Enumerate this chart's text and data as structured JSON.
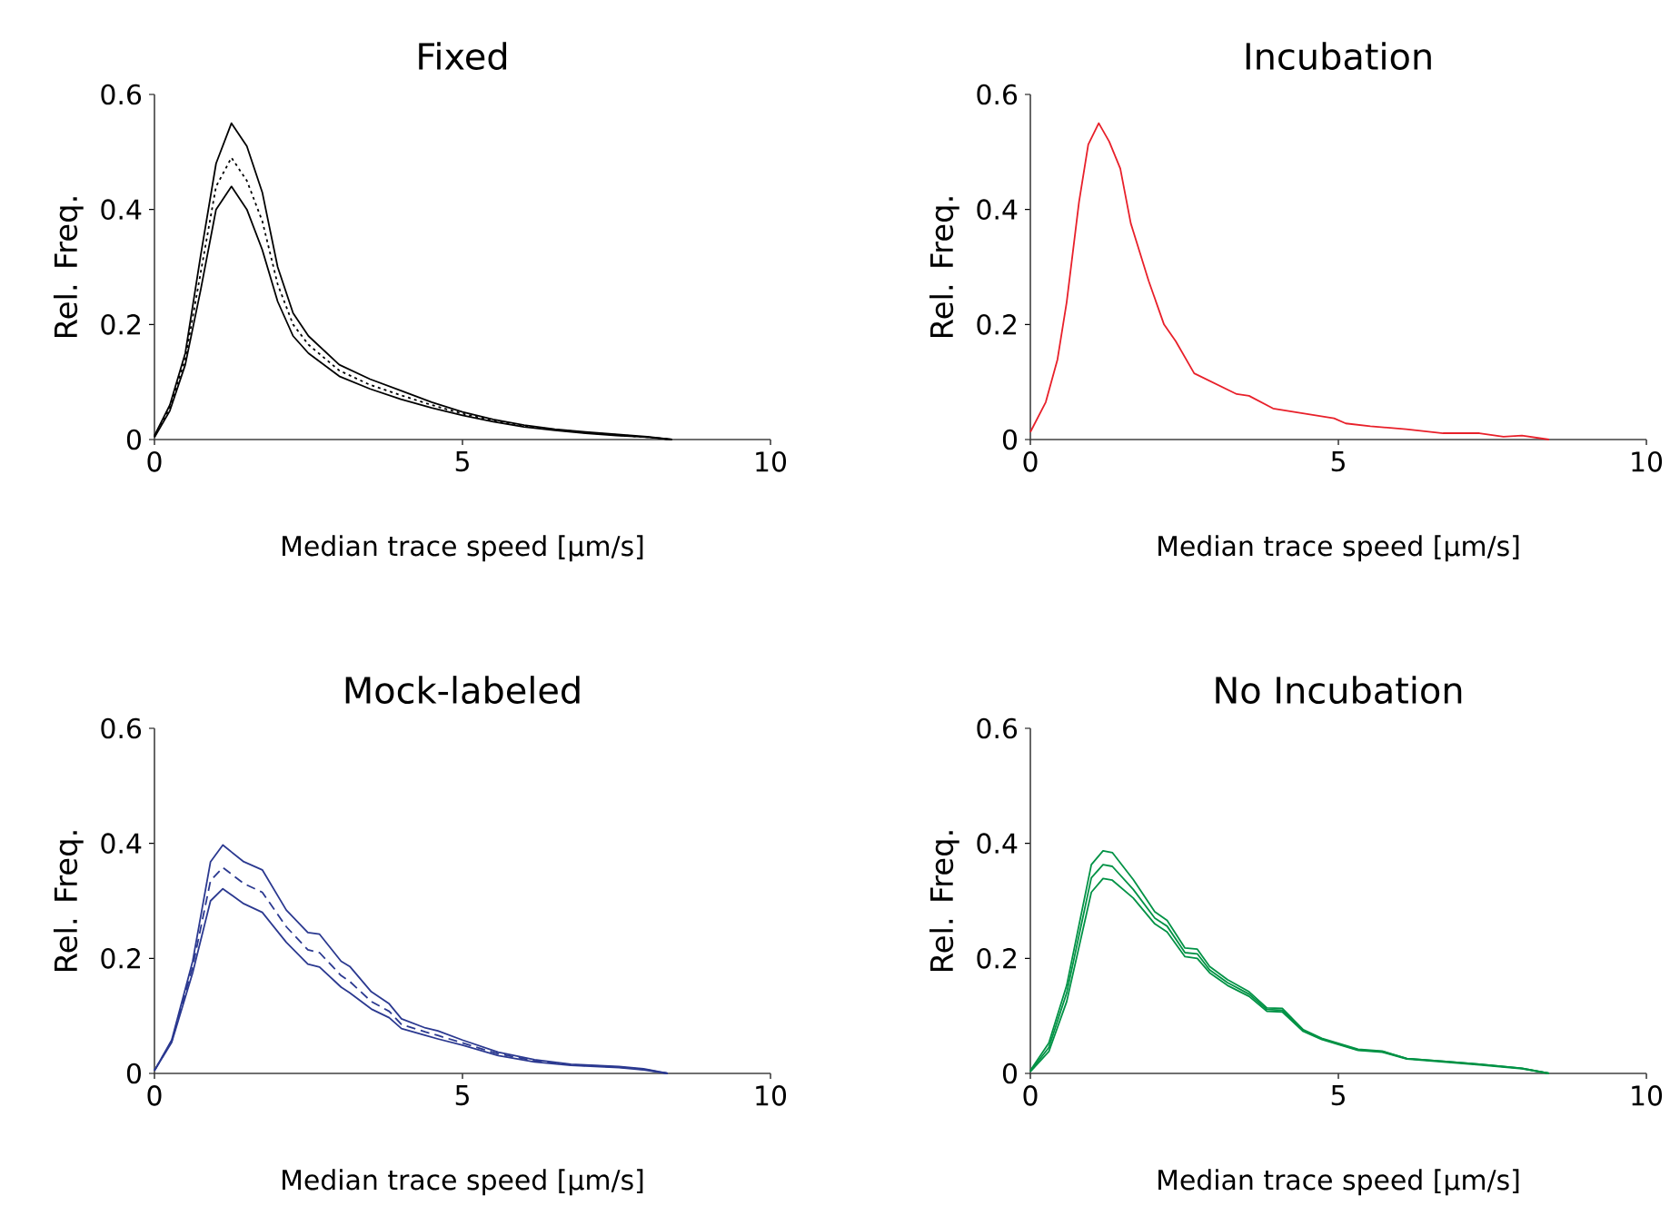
{
  "chart_data": [
    {
      "type": "line",
      "title": "Fixed",
      "xlabel": "Median trace speed [µm/s]",
      "ylabel": "Rel. Freq.",
      "xlim": [
        0,
        10
      ],
      "ylim": [
        0,
        0.6
      ],
      "xticks": [
        0,
        5,
        10
      ],
      "yticks": [
        0,
        0.2,
        0.4,
        0.6
      ],
      "grid": false,
      "marker": "none",
      "x": [
        0,
        0.25,
        0.5,
        0.75,
        1.0,
        1.25,
        1.5,
        1.75,
        2.0,
        2.25,
        2.5,
        3,
        3.5,
        4,
        4.5,
        5,
        5.5,
        6,
        6.5,
        7,
        7.5,
        8,
        8.4
      ],
      "series": [
        {
          "color": "#000000",
          "line_style": "solid",
          "values": [
            0.007,
            0.06,
            0.15,
            0.32,
            0.48,
            0.55,
            0.51,
            0.43,
            0.3,
            0.22,
            0.18,
            0.13,
            0.105,
            0.085,
            0.065,
            0.048,
            0.035,
            0.025,
            0.018,
            0.013,
            0.009,
            0.005,
            0
          ]
        },
        {
          "color": "#000000",
          "line_style": "dotted",
          "values": [
            0.005,
            0.055,
            0.14,
            0.29,
            0.44,
            0.49,
            0.45,
            0.38,
            0.27,
            0.2,
            0.165,
            0.12,
            0.095,
            0.077,
            0.06,
            0.045,
            0.033,
            0.024,
            0.017,
            0.012,
            0.008,
            0.004,
            0
          ]
        },
        {
          "color": "#000000",
          "line_style": "solid",
          "values": [
            0.004,
            0.05,
            0.13,
            0.26,
            0.4,
            0.44,
            0.4,
            0.33,
            0.24,
            0.18,
            0.15,
            0.11,
            0.088,
            0.07,
            0.055,
            0.042,
            0.031,
            0.022,
            0.016,
            0.011,
            0.007,
            0.004,
            0
          ]
        }
      ]
    },
    {
      "type": "line",
      "title": "Incubation",
      "xlabel": "Median trace speed [µm/s]",
      "ylabel": "Rel. Freq.",
      "xlim": [
        0,
        10
      ],
      "ylim": [
        0,
        0.6
      ],
      "xticks": [
        0,
        5,
        10
      ],
      "yticks": [
        0,
        0.2,
        0.4,
        0.6
      ],
      "grid": false,
      "marker": "none",
      "x": [
        0,
        0.25,
        0.44,
        0.59,
        0.79,
        0.94,
        1.11,
        1.28,
        1.46,
        1.63,
        1.92,
        2.17,
        2.36,
        2.66,
        3.35,
        3.55,
        3.94,
        4.33,
        4.93,
        5.12,
        5.52,
        6.1,
        6.7,
        7.29,
        7.68,
        7.98,
        8.42
      ],
      "series": [
        {
          "color": "#e8202a",
          "line_style": "solid",
          "values": [
            0.013,
            0.065,
            0.139,
            0.239,
            0.413,
            0.513,
            0.55,
            0.518,
            0.471,
            0.376,
            0.276,
            0.2,
            0.171,
            0.115,
            0.079,
            0.076,
            0.054,
            0.047,
            0.037,
            0.028,
            0.023,
            0.018,
            0.011,
            0.011,
            0.005,
            0.007,
            0
          ]
        }
      ]
    },
    {
      "type": "line",
      "title": "Mock-labeled",
      "xlabel": "Median trace speed [µm/s]",
      "ylabel": "Rel. Freq.",
      "xlim": [
        0,
        10
      ],
      "ylim": [
        0,
        0.6
      ],
      "xticks": [
        0,
        5,
        10
      ],
      "yticks": [
        0,
        0.2,
        0.4,
        0.6
      ],
      "grid": false,
      "marker": "none",
      "x": [
        0,
        0.28,
        0.62,
        0.91,
        1.11,
        1.45,
        1.75,
        2.14,
        2.49,
        2.68,
        3.03,
        3.17,
        3.52,
        3.81,
        4.01,
        4.4,
        4.6,
        5.0,
        5.58,
        6.17,
        6.76,
        7.54,
        7.94,
        8.33
      ],
      "series": [
        {
          "color": "#2b3990",
          "line_style": "solid",
          "values": [
            0.005,
            0.058,
            0.195,
            0.368,
            0.397,
            0.368,
            0.354,
            0.284,
            0.245,
            0.242,
            0.195,
            0.186,
            0.142,
            0.121,
            0.095,
            0.079,
            0.074,
            0.058,
            0.037,
            0.024,
            0.016,
            0.012,
            0.008,
            0
          ]
        },
        {
          "color": "#2b3990",
          "line_style": "dashed",
          "values": [
            0.005,
            0.056,
            0.185,
            0.335,
            0.358,
            0.33,
            0.315,
            0.255,
            0.215,
            0.21,
            0.17,
            0.16,
            0.125,
            0.108,
            0.085,
            0.072,
            0.066,
            0.053,
            0.034,
            0.022,
            0.015,
            0.011,
            0.007,
            0
          ]
        },
        {
          "color": "#2b3990",
          "line_style": "solid",
          "values": [
            0.005,
            0.054,
            0.175,
            0.3,
            0.321,
            0.295,
            0.28,
            0.228,
            0.19,
            0.185,
            0.15,
            0.14,
            0.112,
            0.097,
            0.078,
            0.066,
            0.06,
            0.049,
            0.031,
            0.02,
            0.014,
            0.01,
            0.006,
            0
          ]
        }
      ]
    },
    {
      "type": "line",
      "title": "No Incubation",
      "xlabel": "Median trace speed [µm/s]",
      "ylabel": "Rel. Freq.",
      "xlim": [
        0,
        10
      ],
      "ylim": [
        0,
        0.6
      ],
      "xticks": [
        0,
        5,
        10
      ],
      "yticks": [
        0,
        0.2,
        0.4,
        0.6
      ],
      "grid": false,
      "marker": "none",
      "x": [
        0,
        0.3,
        0.59,
        0.99,
        1.18,
        1.33,
        1.67,
        2.02,
        2.22,
        2.51,
        2.71,
        2.91,
        3.2,
        3.55,
        3.84,
        4.09,
        4.43,
        4.73,
        5.32,
        5.71,
        6.11,
        6.7,
        7.29,
        7.98,
        8.42
      ],
      "series": [
        {
          "color": "#009245",
          "line_style": "solid",
          "values": [
            0.005,
            0.053,
            0.153,
            0.363,
            0.387,
            0.384,
            0.337,
            0.281,
            0.266,
            0.218,
            0.216,
            0.186,
            0.163,
            0.142,
            0.114,
            0.113,
            0.076,
            0.061,
            0.042,
            0.039,
            0.026,
            0.021,
            0.016,
            0.009,
            0
          ]
        },
        {
          "color": "#009245",
          "line_style": "solid",
          "values": [
            0.004,
            0.045,
            0.14,
            0.34,
            0.363,
            0.36,
            0.32,
            0.27,
            0.256,
            0.21,
            0.208,
            0.18,
            0.158,
            0.138,
            0.111,
            0.11,
            0.075,
            0.06,
            0.041,
            0.038,
            0.026,
            0.021,
            0.016,
            0.009,
            0
          ]
        },
        {
          "color": "#009245",
          "line_style": "solid",
          "values": [
            0.003,
            0.038,
            0.125,
            0.315,
            0.339,
            0.336,
            0.305,
            0.26,
            0.246,
            0.203,
            0.2,
            0.175,
            0.153,
            0.134,
            0.108,
            0.107,
            0.073,
            0.059,
            0.04,
            0.037,
            0.025,
            0.02,
            0.015,
            0.008,
            0
          ]
        }
      ]
    }
  ]
}
